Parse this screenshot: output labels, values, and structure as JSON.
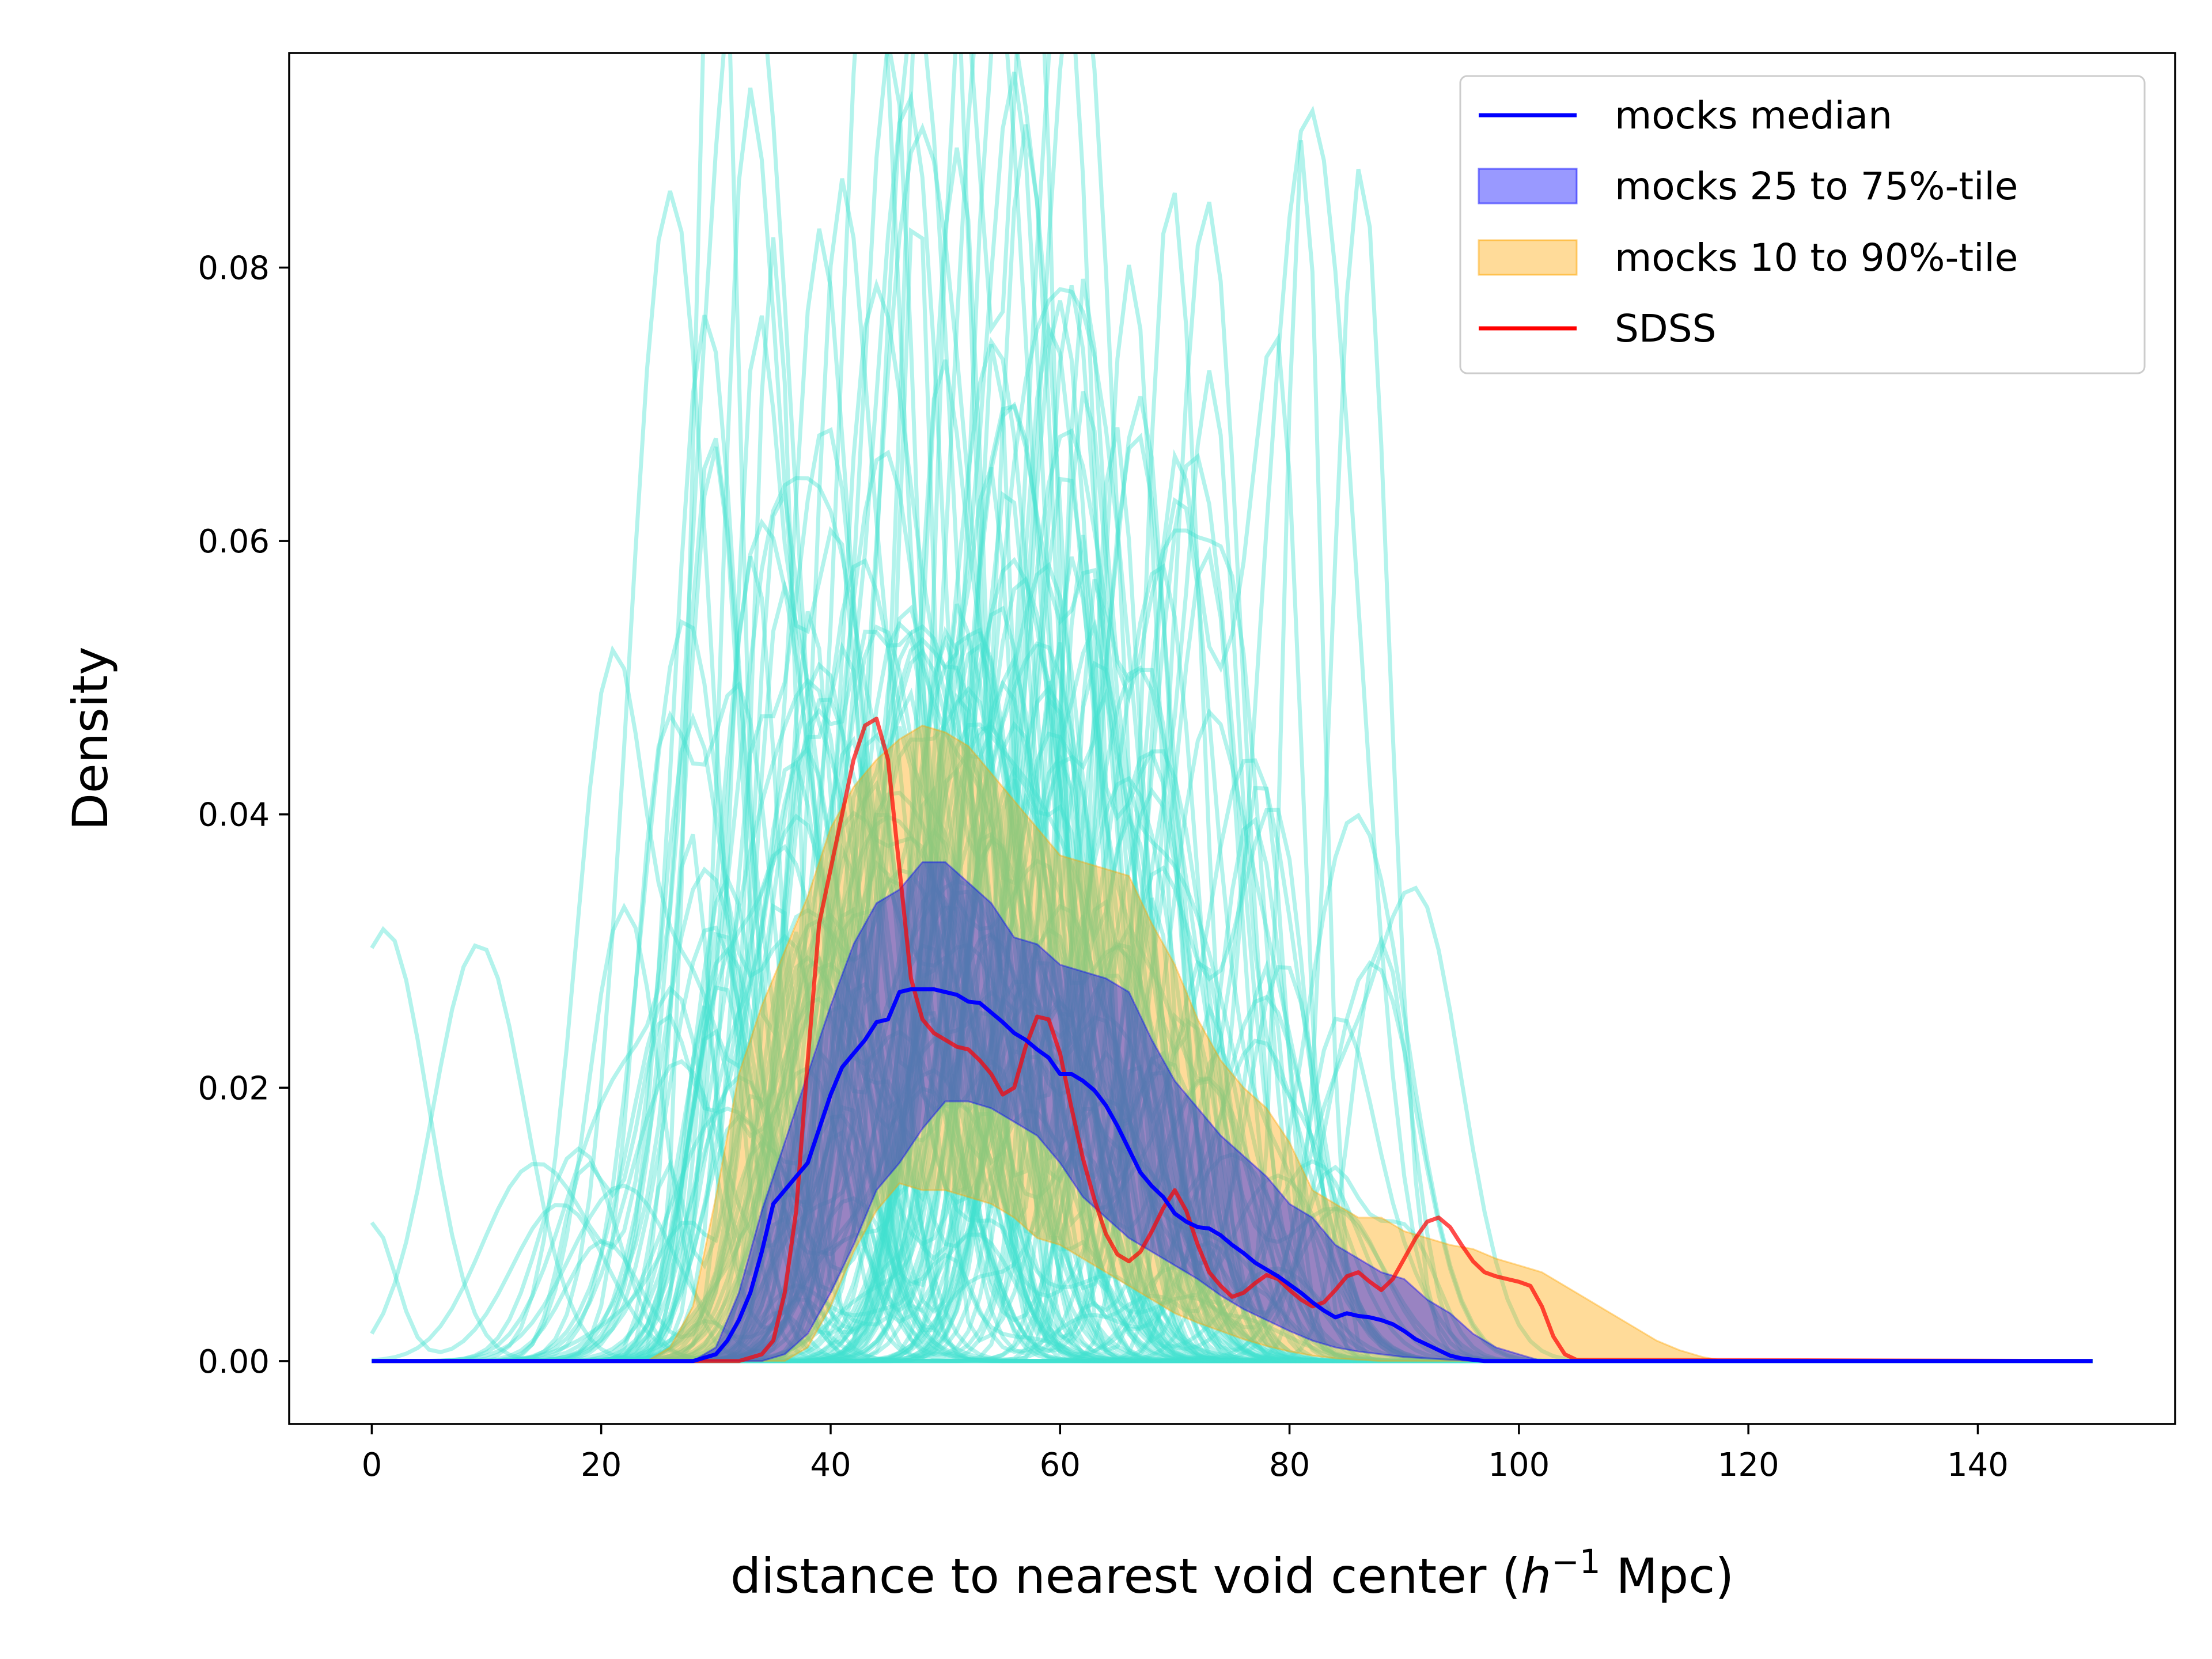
{
  "chart_data": {
    "type": "line",
    "xlabel": "distance to nearest void center (h⁻¹ Mpc)",
    "xlabel_parts": {
      "prefix": "distance to nearest void center (",
      "h": "h",
      "sup": "−1",
      "suffix": " Mpc)"
    },
    "ylabel": "Density",
    "xlim": [
      -7.2,
      157.2
    ],
    "ylim": [
      -0.0046,
      0.0957
    ],
    "xticks": [
      0,
      20,
      40,
      60,
      80,
      100,
      120,
      140
    ],
    "yticks": [
      0.0,
      0.02,
      0.04,
      0.06,
      0.08
    ],
    "ytick_labels": [
      "0.00",
      "0.02",
      "0.04",
      "0.06",
      "0.08"
    ],
    "legend": {
      "position": "upper right",
      "entries": [
        {
          "label": "mocks median",
          "kind": "line",
          "color": "#0000ff"
        },
        {
          "label": "mocks 25 to 75%-tile",
          "kind": "patch",
          "color": "#0000ff",
          "alpha": 0.4
        },
        {
          "label": "mocks 10 to 90%-tile",
          "kind": "patch",
          "color": "#ffa500",
          "alpha": 0.4
        },
        {
          "label": "SDSS",
          "kind": "line",
          "color": "#ff0000"
        }
      ]
    },
    "mock_curve_color": "#40e0d0",
    "mock_curve_alpha": 0.4,
    "mock_curve_count": 120,
    "bands": [
      {
        "name": "mocks 10 to 90%-tile",
        "color": "#ffa500",
        "alpha": 0.4,
        "x": [
          24,
          26,
          28,
          30,
          32,
          34,
          36,
          38,
          40,
          42,
          44,
          46,
          48,
          50,
          52,
          54,
          56,
          58,
          60,
          62,
          64,
          66,
          68,
          70,
          72,
          74,
          76,
          78,
          80,
          82,
          84,
          86,
          88,
          90,
          92,
          94,
          96,
          98,
          100,
          102,
          104,
          106,
          108,
          110,
          112,
          114,
          116,
          118
        ],
        "lower": [
          0,
          0,
          0,
          0,
          0,
          0,
          0,
          0.001,
          0.004,
          0.008,
          0.011,
          0.013,
          0.0125,
          0.0125,
          0.012,
          0.0115,
          0.0105,
          0.009,
          0.0085,
          0.0075,
          0.0065,
          0.0055,
          0.0045,
          0.0035,
          0.0028,
          0.0022,
          0.0016,
          0.0011,
          0.0007,
          0.0004,
          0.0002,
          0.0001,
          0,
          0,
          0,
          0,
          0,
          0,
          0,
          0,
          0,
          0,
          0,
          0,
          0,
          0,
          0,
          0
        ],
        "upper": [
          0,
          0.001,
          0.004,
          0.012,
          0.021,
          0.026,
          0.03,
          0.034,
          0.039,
          0.042,
          0.044,
          0.0455,
          0.0465,
          0.046,
          0.045,
          0.043,
          0.041,
          0.039,
          0.037,
          0.0365,
          0.036,
          0.0355,
          0.032,
          0.029,
          0.025,
          0.022,
          0.02,
          0.0185,
          0.016,
          0.0125,
          0.0115,
          0.0105,
          0.0105,
          0.0095,
          0.009,
          0.0085,
          0.0082,
          0.0075,
          0.007,
          0.0065,
          0.0055,
          0.0045,
          0.0035,
          0.0025,
          0.0015,
          0.0008,
          0.0003,
          0
        ]
      },
      {
        "name": "mocks 25 to 75%-tile",
        "color": "#0000ff",
        "alpha": 0.4,
        "x": [
          28,
          30,
          32,
          34,
          36,
          38,
          40,
          42,
          44,
          46,
          48,
          50,
          52,
          54,
          56,
          58,
          60,
          62,
          64,
          66,
          68,
          70,
          72,
          74,
          76,
          78,
          80,
          82,
          84,
          86,
          88,
          90,
          92,
          94,
          96,
          98,
          100,
          102
        ],
        "lower": [
          0,
          0,
          0,
          0,
          0.0005,
          0.002,
          0.005,
          0.0085,
          0.0125,
          0.0145,
          0.017,
          0.019,
          0.019,
          0.0185,
          0.0175,
          0.0165,
          0.0145,
          0.012,
          0.0105,
          0.009,
          0.008,
          0.007,
          0.006,
          0.0048,
          0.0038,
          0.003,
          0.0022,
          0.0015,
          0.001,
          0.0007,
          0.0005,
          0.0003,
          0.0002,
          0.0001,
          0,
          0,
          0,
          0
        ],
        "upper": [
          0,
          0.001,
          0.005,
          0.011,
          0.016,
          0.021,
          0.026,
          0.0305,
          0.0335,
          0.0345,
          0.0365,
          0.0365,
          0.035,
          0.0335,
          0.031,
          0.0305,
          0.029,
          0.0285,
          0.028,
          0.027,
          0.0235,
          0.0205,
          0.0185,
          0.0165,
          0.015,
          0.0135,
          0.0115,
          0.0105,
          0.0085,
          0.0075,
          0.0065,
          0.006,
          0.0045,
          0.0035,
          0.002,
          0.001,
          0.0005,
          0
        ]
      }
    ],
    "median": {
      "name": "mocks median",
      "color": "#0000ff",
      "x": [
        0,
        28,
        30,
        31,
        32,
        33,
        34,
        35,
        36,
        37,
        38,
        39,
        40,
        41,
        42,
        43,
        44,
        45,
        46,
        47,
        48,
        49,
        50,
        51,
        52,
        53,
        54,
        55,
        56,
        57,
        58,
        59,
        60,
        61,
        62,
        63,
        64,
        65,
        66,
        67,
        68,
        69,
        70,
        71,
        72,
        73,
        74,
        75,
        76,
        77,
        78,
        79,
        80,
        81,
        82,
        83,
        84,
        85,
        86,
        87,
        88,
        89,
        90,
        91,
        92,
        93,
        94,
        95,
        96,
        97,
        98,
        150
      ],
      "y": [
        0,
        0,
        0.0005,
        0.0015,
        0.003,
        0.005,
        0.008,
        0.0115,
        0.0125,
        0.0135,
        0.0145,
        0.017,
        0.0195,
        0.0215,
        0.0225,
        0.0235,
        0.0248,
        0.025,
        0.027,
        0.0272,
        0.0272,
        0.0272,
        0.027,
        0.0268,
        0.0263,
        0.0262,
        0.0255,
        0.0248,
        0.024,
        0.0235,
        0.0228,
        0.0222,
        0.021,
        0.021,
        0.0205,
        0.0198,
        0.0187,
        0.0172,
        0.0155,
        0.0138,
        0.0128,
        0.012,
        0.0108,
        0.0102,
        0.0098,
        0.0097,
        0.0092,
        0.0085,
        0.0079,
        0.0072,
        0.0067,
        0.0062,
        0.0056,
        0.005,
        0.0043,
        0.0037,
        0.0032,
        0.0035,
        0.0033,
        0.0032,
        0.003,
        0.0027,
        0.0022,
        0.0016,
        0.0012,
        0.0008,
        0.0004,
        0.0002,
        0.0001,
        0,
        0,
        0
      ]
    },
    "sdss": {
      "name": "SDSS",
      "color": "#ff0000",
      "alpha": 0.7,
      "x": [
        0,
        32,
        34,
        35,
        36,
        37,
        38,
        39,
        40,
        41,
        42,
        43,
        44,
        45,
        46,
        47,
        48,
        49,
        50,
        51,
        52,
        53,
        54,
        55,
        56,
        57,
        58,
        59,
        60,
        61,
        62,
        63,
        64,
        65,
        66,
        67,
        68,
        69,
        70,
        71,
        72,
        73,
        74,
        75,
        76,
        77,
        78,
        79,
        80,
        81,
        82,
        83,
        84,
        85,
        86,
        87,
        88,
        89,
        90,
        91,
        92,
        93,
        94,
        95,
        96,
        97,
        98,
        99,
        100,
        101,
        102,
        103,
        104,
        105,
        150
      ],
      "y": [
        0,
        0,
        0.0005,
        0.0015,
        0.005,
        0.011,
        0.022,
        0.032,
        0.036,
        0.04,
        0.044,
        0.0465,
        0.047,
        0.044,
        0.036,
        0.028,
        0.025,
        0.024,
        0.0235,
        0.023,
        0.0228,
        0.022,
        0.021,
        0.0195,
        0.02,
        0.023,
        0.0252,
        0.025,
        0.0225,
        0.0185,
        0.0148,
        0.0118,
        0.0093,
        0.0078,
        0.0073,
        0.008,
        0.0095,
        0.0112,
        0.0125,
        0.011,
        0.0085,
        0.0065,
        0.0055,
        0.0047,
        0.005,
        0.0057,
        0.0063,
        0.006,
        0.0052,
        0.0045,
        0.004,
        0.0043,
        0.0052,
        0.0062,
        0.0065,
        0.0058,
        0.0052,
        0.006,
        0.0075,
        0.009,
        0.0102,
        0.0105,
        0.0098,
        0.0085,
        0.0073,
        0.0065,
        0.0062,
        0.006,
        0.0058,
        0.0055,
        0.004,
        0.0018,
        0.0005,
        0.0001,
        0
      ]
    }
  }
}
